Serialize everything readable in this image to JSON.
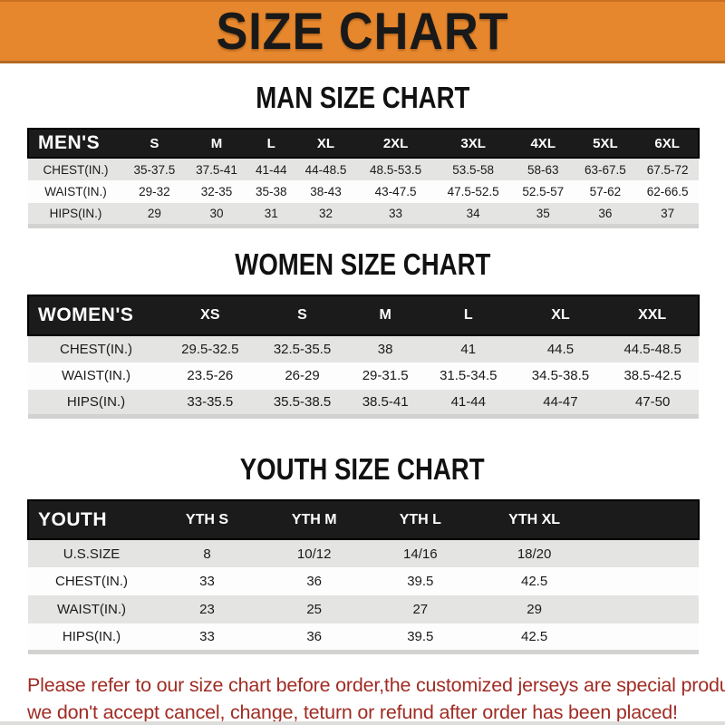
{
  "banner": {
    "title": "SIZE CHART",
    "bg_color": "#E6872D",
    "text_color": "#191919"
  },
  "colors": {
    "header_bar_bg": "#1B1B1B",
    "row_alt_gray": "#E4E4E2",
    "row_white": "#FDFDFD",
    "footer_red": "#A02C24"
  },
  "sections": [
    {
      "name": "men",
      "title": "MAN SIZE CHART",
      "header_label": "MEN'S",
      "columns": [
        "S",
        "M",
        "L",
        "XL",
        "2XL",
        "3XL",
        "4XL",
        "5XL",
        "6XL"
      ],
      "rows": [
        {
          "label": "CHEST(IN.)",
          "values": [
            "35-37.5",
            "37.5-41",
            "41-44",
            "44-48.5",
            "48.5-53.5",
            "53.5-58",
            "58-63",
            "63-67.5",
            "67.5-72"
          ]
        },
        {
          "label": "WAIST(IN.)",
          "values": [
            "29-32",
            "32-35",
            "35-38",
            "38-43",
            "43-47.5",
            "47.5-52.5",
            "52.5-57",
            "57-62",
            "62-66.5"
          ]
        },
        {
          "label": "HIPS(IN.)",
          "values": [
            "29",
            "30",
            "31",
            "32",
            "33",
            "34",
            "35",
            "36",
            "37"
          ]
        }
      ]
    },
    {
      "name": "women",
      "title": "WOMEN SIZE CHART",
      "header_label": "WOMEN'S",
      "columns": [
        "XS",
        "S",
        "M",
        "L",
        "XL",
        "XXL"
      ],
      "rows": [
        {
          "label": "CHEST(IN.)",
          "values": [
            "29.5-32.5",
            "32.5-35.5",
            "38",
            "41",
            "44.5",
            "44.5-48.5"
          ]
        },
        {
          "label": "WAIST(IN.)",
          "values": [
            "23.5-26",
            "26-29",
            "29-31.5",
            "31.5-34.5",
            "34.5-38.5",
            "38.5-42.5"
          ]
        },
        {
          "label": "HIPS(IN.)",
          "values": [
            "33-35.5",
            "35.5-38.5",
            "38.5-41",
            "41-44",
            "44-47",
            "47-50"
          ]
        }
      ]
    },
    {
      "name": "youth",
      "title": "YOUTH SIZE CHART",
      "header_label": "YOUTH",
      "columns": [
        "YTH S",
        "YTH M",
        "YTH L",
        "YTH XL"
      ],
      "rows": [
        {
          "label": "U.S.SIZE",
          "values": [
            "8",
            "10/12",
            "14/16",
            "18/20"
          ]
        },
        {
          "label": "CHEST(IN.)",
          "values": [
            "33",
            "36",
            "39.5",
            "42.5"
          ]
        },
        {
          "label": "WAIST(IN.)",
          "values": [
            "23",
            "25",
            "27",
            "29"
          ]
        },
        {
          "label": "HIPS(IN.)",
          "values": [
            "33",
            "36",
            "39.5",
            "42.5"
          ]
        }
      ]
    }
  ],
  "footer": {
    "line1": "Please refer to our size chart before order,the customized jerseys are special products,",
    "line2": "we don't accept cancel, change, teturn or refund after order has been placed!"
  }
}
